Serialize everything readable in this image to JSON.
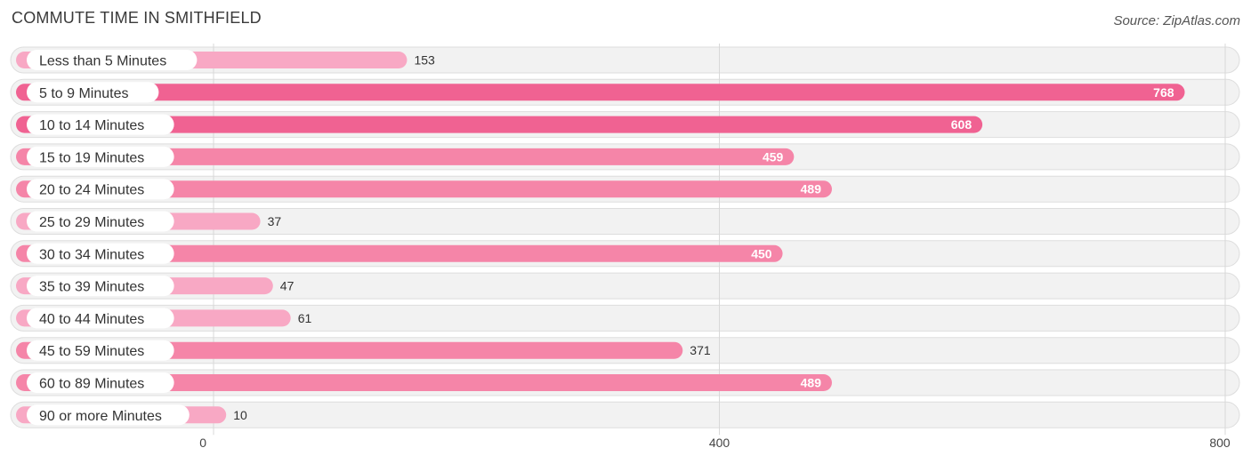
{
  "header": {
    "title": "COMMUTE TIME IN SMITHFIELD",
    "source": "Source: ZipAtlas.com"
  },
  "chart_data": {
    "type": "bar",
    "orientation": "horizontal",
    "title": "COMMUTE TIME IN SMITHFIELD",
    "categories": [
      "Less than 5 Minutes",
      "5 to 9 Minutes",
      "10 to 14 Minutes",
      "15 to 19 Minutes",
      "20 to 24 Minutes",
      "25 to 29 Minutes",
      "30 to 34 Minutes",
      "35 to 39 Minutes",
      "40 to 44 Minutes",
      "45 to 59 Minutes",
      "60 to 89 Minutes",
      "90 or more Minutes"
    ],
    "values": [
      153,
      768,
      608,
      459,
      489,
      37,
      450,
      47,
      61,
      371,
      489,
      10
    ],
    "xlim": [
      0,
      800
    ],
    "xticks": [
      0,
      400,
      800
    ],
    "grid": true,
    "colors": {
      "strong": "#f06292",
      "medium": "#f585a8",
      "light": "#f8a8c4",
      "track": "#f2f2f2",
      "track_border": "#dddddd"
    }
  }
}
